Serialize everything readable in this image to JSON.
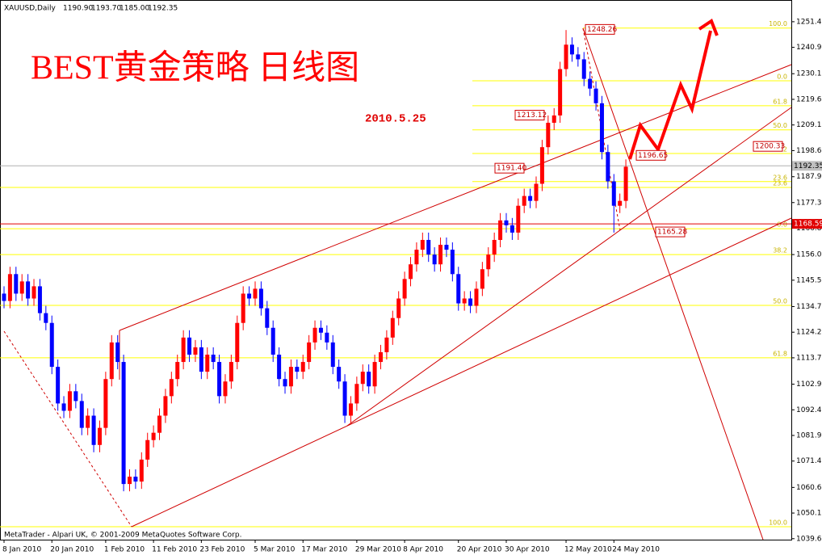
{
  "chart_data": {
    "type": "candlestick",
    "title": "BEST黄金策略  日线图",
    "subtitle": "2010.5.25",
    "header": {
      "symbol": "XAUUSD,Daily",
      "ohlc": [
        "1190.90",
        "1193.70",
        "1185.00",
        "1192.35"
      ]
    },
    "footer": "MetaTrader - Alpari UK, © 2001-2009 MetaQuotes Software Corp.",
    "up_color": "#ff0000",
    "down_color": "#0000ff",
    "open": [
      1140,
      1137,
      1148,
      1140,
      1145,
      1138,
      1143,
      1132,
      1128,
      1110,
      1095,
      1092,
      1100,
      1096,
      1085,
      1090,
      1078,
      1085,
      1105,
      1120,
      1112,
      1062,
      1065,
      1063,
      1072,
      1080,
      1083,
      1090,
      1098,
      1105,
      1112,
      1122,
      1115,
      1118,
      1108,
      1115,
      1112,
      1098,
      1104,
      1112,
      1128,
      1140,
      1138,
      1142,
      1134,
      1126,
      1115,
      1105,
      1102,
      1110,
      1108,
      1112,
      1120,
      1126,
      1124,
      1120,
      1110,
      1104,
      1090,
      1095,
      1103,
      1108,
      1102,
      1112,
      1116,
      1122,
      1130,
      1138,
      1146,
      1152,
      1158,
      1162,
      1156,
      1152,
      1160,
      1158,
      1148,
      1136,
      1138,
      1135,
      1142,
      1150,
      1156,
      1162,
      1170,
      1168,
      1165,
      1176,
      1180,
      1178,
      1185,
      1200,
      1210,
      1213,
      1232,
      1242,
      1238,
      1236,
      1228,
      1224,
      1218,
      1198,
      1186,
      1176,
      1178
    ],
    "high": [
      1143,
      1151,
      1151,
      1148,
      1148,
      1146,
      1146,
      1135,
      1131,
      1113,
      1098,
      1103,
      1103,
      1099,
      1093,
      1093,
      1088,
      1108,
      1123,
      1123,
      1115,
      1068,
      1068,
      1075,
      1083,
      1086,
      1093,
      1101,
      1108,
      1115,
      1125,
      1125,
      1121,
      1121,
      1118,
      1118,
      1115,
      1107,
      1115,
      1131,
      1143,
      1143,
      1145,
      1145,
      1137,
      1129,
      1118,
      1108,
      1113,
      1113,
      1115,
      1123,
      1129,
      1129,
      1127,
      1123,
      1113,
      1107,
      1098,
      1106,
      1111,
      1111,
      1115,
      1119,
      1125,
      1133,
      1141,
      1149,
      1155,
      1161,
      1165,
      1165,
      1159,
      1163,
      1163,
      1161,
      1151,
      1141,
      1141,
      1145,
      1153,
      1159,
      1165,
      1173,
      1173,
      1171,
      1179,
      1183,
      1183,
      1188,
      1203,
      1213,
      1216,
      1235,
      1248,
      1245,
      1241,
      1239,
      1231,
      1227,
      1221,
      1201,
      1189,
      1181,
      1195
    ],
    "low": [
      1134,
      1134,
      1137,
      1137,
      1135,
      1135,
      1129,
      1125,
      1107,
      1092,
      1089,
      1089,
      1093,
      1082,
      1082,
      1075,
      1075,
      1082,
      1102,
      1109,
      1059,
      1059,
      1060,
      1060,
      1069,
      1077,
      1080,
      1087,
      1095,
      1102,
      1109,
      1112,
      1112,
      1105,
      1105,
      1109,
      1095,
      1095,
      1101,
      1109,
      1125,
      1135,
      1135,
      1131,
      1123,
      1112,
      1102,
      1099,
      1099,
      1105,
      1105,
      1109,
      1117,
      1121,
      1117,
      1107,
      1101,
      1087,
      1087,
      1092,
      1100,
      1099,
      1099,
      1109,
      1113,
      1119,
      1127,
      1135,
      1143,
      1149,
      1155,
      1153,
      1149,
      1149,
      1155,
      1145,
      1133,
      1133,
      1132,
      1132,
      1139,
      1147,
      1153,
      1159,
      1165,
      1162,
      1162,
      1173,
      1175,
      1175,
      1182,
      1197,
      1207,
      1210,
      1229,
      1235,
      1233,
      1225,
      1221,
      1215,
      1195,
      1183,
      1165,
      1173,
      1175
    ],
    "close": [
      1137,
      1148,
      1140,
      1145,
      1138,
      1143,
      1132,
      1128,
      1110,
      1095,
      1092,
      1100,
      1096,
      1085,
      1090,
      1078,
      1085,
      1105,
      1120,
      1112,
      1062,
      1065,
      1063,
      1072,
      1080,
      1083,
      1090,
      1098,
      1105,
      1112,
      1122,
      1115,
      1118,
      1108,
      1115,
      1112,
      1098,
      1104,
      1112,
      1128,
      1140,
      1138,
      1142,
      1134,
      1126,
      1115,
      1105,
      1102,
      1110,
      1108,
      1112,
      1120,
      1126,
      1124,
      1120,
      1110,
      1104,
      1090,
      1095,
      1103,
      1108,
      1102,
      1112,
      1116,
      1122,
      1130,
      1138,
      1146,
      1152,
      1158,
      1162,
      1156,
      1152,
      1160,
      1158,
      1148,
      1136,
      1138,
      1135,
      1142,
      1150,
      1156,
      1162,
      1170,
      1168,
      1165,
      1176,
      1180,
      1178,
      1185,
      1200,
      1210,
      1213,
      1232,
      1242,
      1238,
      1236,
      1228,
      1224,
      1218,
      1198,
      1186,
      1176,
      1178,
      1192
    ],
    "xticks": [
      {
        "value": 0,
        "label": "8 Jan 2010"
      },
      {
        "value": 8,
        "label": "20 Jan 2010"
      },
      {
        "value": 17,
        "label": "1 Feb 2010"
      },
      {
        "value": 25,
        "label": "11 Feb 2010"
      },
      {
        "value": 33,
        "label": "23 Feb 2010"
      },
      {
        "value": 42,
        "label": "5 Mar 2010"
      },
      {
        "value": 50,
        "label": "17 Mar 2010"
      },
      {
        "value": 59,
        "label": "29 Mar 2010"
      },
      {
        "value": 67,
        "label": "8 Apr 2010"
      },
      {
        "value": 76,
        "label": "20 Apr 2010"
      },
      {
        "value": 84,
        "label": "30 Apr 2010"
      },
      {
        "value": 94,
        "label": "12 May 2010"
      },
      {
        "value": 102,
        "label": "24 May 2010"
      }
    ],
    "xlim": [
      0,
      131
    ],
    "ylim": [
      1039.2,
      1260.3
    ],
    "yticks": [
      {
        "value": 1251.4,
        "label": "1251.40"
      },
      {
        "value": 1240.9,
        "label": "1240.90"
      },
      {
        "value": 1230.1,
        "label": "1230.10"
      },
      {
        "value": 1219.6,
        "label": "1219.60"
      },
      {
        "value": 1209.1,
        "label": "1209.10"
      },
      {
        "value": 1198.6,
        "label": "1198.60"
      },
      {
        "value": 1187.9,
        "label": "1187.90"
      },
      {
        "value": 1177.3,
        "label": "1177.30"
      },
      {
        "value": 1166.8,
        "label": "1166.80"
      },
      {
        "value": 1156.0,
        "label": "1156.00"
      },
      {
        "value": 1145.5,
        "label": "1145.50"
      },
      {
        "value": 1134.7,
        "label": "1134.70"
      },
      {
        "value": 1124.2,
        "label": "1124.20"
      },
      {
        "value": 1113.7,
        "label": "1113.70"
      },
      {
        "value": 1102.9,
        "label": "1102.90"
      },
      {
        "value": 1092.4,
        "label": "1092.40"
      },
      {
        "value": 1081.9,
        "label": "1081.90"
      },
      {
        "value": 1071.4,
        "label": "1071.40"
      },
      {
        "value": 1060.6,
        "label": "1060.60"
      },
      {
        "value": 1050.1,
        "label": "1050.10"
      },
      {
        "value": 1039.6,
        "label": "1039.60"
      }
    ],
    "fib_levels": [
      {
        "value": 1248.8,
        "label": "100.0"
      },
      {
        "value": 1227.2,
        "label": "0.0"
      },
      {
        "value": 1217.0,
        "label": "61.8"
      },
      {
        "value": 1207.1,
        "label": "50.0"
      },
      {
        "value": 1197.4,
        "label": "38.2"
      },
      {
        "value": 1185.9,
        "label": "23.6"
      },
      {
        "value": 1183.5,
        "label": "23.6"
      },
      {
        "value": 1166.6,
        "label": "0.0"
      },
      {
        "value": 1156.0,
        "label": "38.2"
      },
      {
        "value": 1135.2,
        "label": "50.0"
      },
      {
        "value": 1113.7,
        "label": "61.8"
      },
      {
        "value": 1044.5,
        "label": "100.0"
      }
    ],
    "fib_color": "#ffff00",
    "price_tags": [
      1248.26,
      1213.12,
      {
        "value": 1191.4,
        "label": "1191.40"
      },
      1196.65,
      1200.33,
      1165.28
    ],
    "current_price": 1192.35,
    "resistance_price": 1168.59
  }
}
